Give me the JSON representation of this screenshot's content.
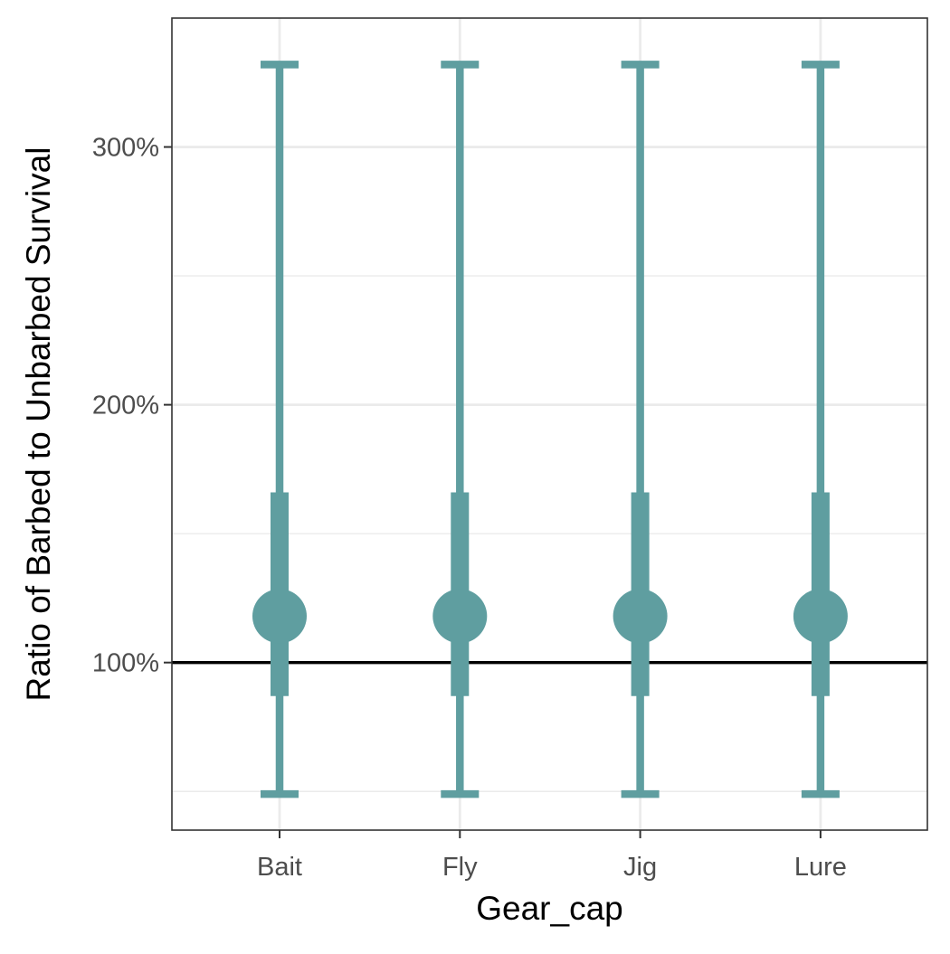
{
  "chart_data": {
    "type": "errorbar",
    "title": "",
    "xlabel": "Gear_cap",
    "ylabel": "Ratio of Barbed to Unbarbed Survival",
    "categories": [
      "Bait",
      "Fly",
      "Jig",
      "Lure"
    ],
    "point_estimate": [
      118,
      118,
      118,
      118
    ],
    "inner_interval": [
      [
        87,
        166
      ],
      [
        87,
        166
      ],
      [
        87,
        166
      ],
      [
        87,
        166
      ]
    ],
    "outer_interval": [
      [
        49,
        332
      ],
      [
        49,
        332
      ],
      [
        49,
        332
      ],
      [
        49,
        332
      ]
    ],
    "reference_line": 100,
    "ylim": [
      35,
      350
    ],
    "y_ticks": [
      {
        "value": 100,
        "label": "100%"
      },
      {
        "value": 200,
        "label": "200%"
      },
      {
        "value": 300,
        "label": "300%"
      }
    ],
    "y_minor_gridlines": [
      50,
      150,
      250
    ],
    "grid": true,
    "colors": {
      "series": "#5f9ea0",
      "reference_line": "#000000",
      "grid": "#ebebeb",
      "panel_border": "#333333"
    }
  }
}
